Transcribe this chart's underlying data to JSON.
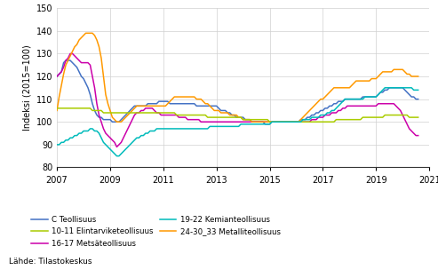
{
  "ylabel": "Indeksi (2015=100)",
  "source": "Lähde: Tilastokeskus",
  "ylim": [
    80,
    150
  ],
  "yticks": [
    80,
    90,
    100,
    110,
    120,
    130,
    140,
    150
  ],
  "xticks": [
    2007,
    2009,
    2011,
    2013,
    2015,
    2017,
    2019,
    2021
  ],
  "xlim": [
    2007.0,
    2021.0
  ],
  "colors": {
    "C_Teollisuus": "#4472c4",
    "Metsateollisuus": "#cc00aa",
    "Metalliteollisuus": "#ff9900",
    "Elintarviketeollisuus": "#aacc00",
    "Kemianteollisuus": "#00bbbb"
  },
  "legend_labels": [
    "C Teollisuus",
    "16-17 Metsäteollisuus",
    "24-30_33 Metalliteollisuus",
    "10-11 Elintarviketeollisuus",
    "19-22 Kemianteollisuus"
  ],
  "n_months": 164
}
